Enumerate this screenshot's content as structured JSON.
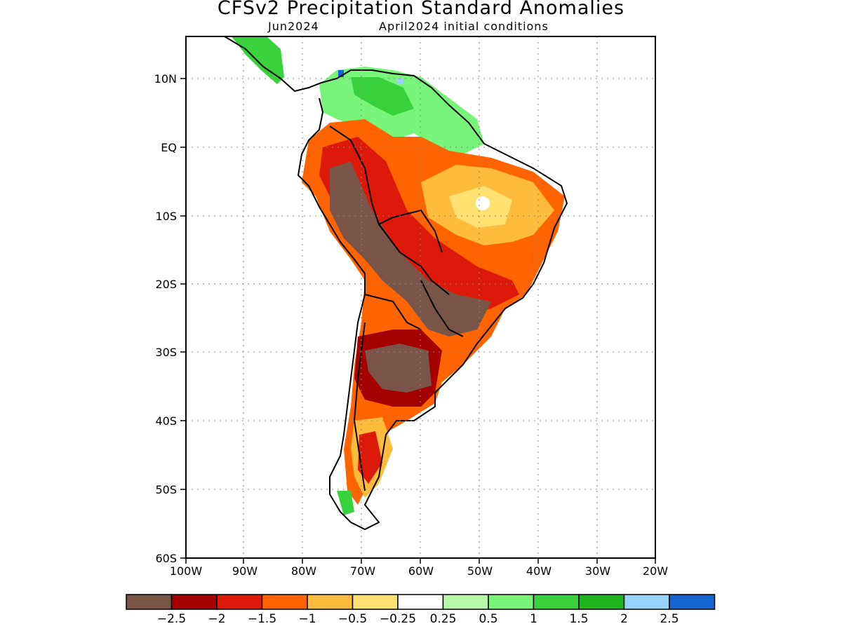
{
  "title": "CFSv2 Precipitation Standard Anomalies",
  "subtitle_left": "Jun2024",
  "subtitle_right": "April2024 initial conditions",
  "lat_labels": [
    "10N",
    "EQ",
    "10S",
    "20S",
    "30S",
    "40S",
    "50S",
    "60S"
  ],
  "lon_labels": [
    "100W",
    "90W",
    "80W",
    "70W",
    "60W",
    "50W",
    "40W",
    "30W",
    "20W"
  ],
  "colorbar": {
    "colors": [
      "#7a5547",
      "#a50000",
      "#dd1a0a",
      "#ff6400",
      "#ffbb3c",
      "#ffe070",
      "#ffffff",
      "#b4f8a8",
      "#78f578",
      "#37d23c",
      "#1eb41e",
      "#96d2fa",
      "#1464d2"
    ],
    "labels": [
      "−2.5",
      "−2",
      "−1.5",
      "−1",
      "−0.5",
      "−0.25",
      "0.25",
      "0.5",
      "1",
      "1.5",
      "2",
      "2.5"
    ]
  }
}
